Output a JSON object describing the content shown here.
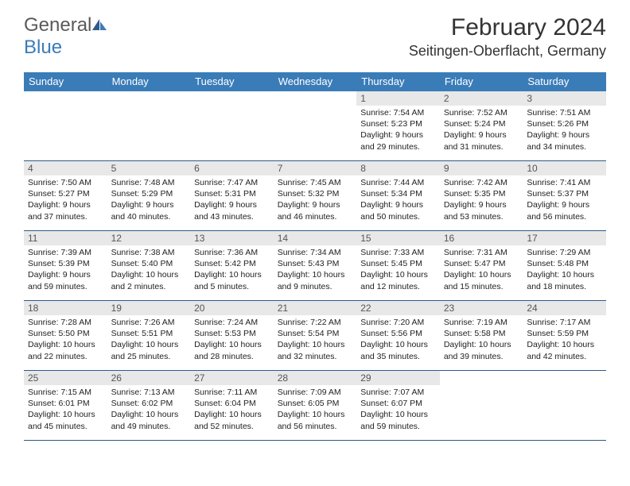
{
  "logo": {
    "part1": "General",
    "part2": "Blue"
  },
  "title": "February 2024",
  "location": "Seitingen-Oberflacht, Germany",
  "dayHeaders": [
    "Sunday",
    "Monday",
    "Tuesday",
    "Wednesday",
    "Thursday",
    "Friday",
    "Saturday"
  ],
  "colors": {
    "headerBg": "#3a7cb8",
    "headerText": "#ffffff",
    "dayNumBg": "#e8e8e8",
    "rowBorder": "#2e5b8a",
    "bodyText": "#222222",
    "logoGray": "#5a5a5a",
    "logoBlue": "#3a7cb8"
  },
  "typography": {
    "titleSize": 30,
    "locationSize": 18,
    "headerSize": 13,
    "dayNumSize": 12,
    "cellSize": 10.5
  },
  "weeks": [
    [
      null,
      null,
      null,
      null,
      {
        "n": "1",
        "sr": "7:54 AM",
        "ss": "5:23 PM",
        "dl": "9 hours and 29 minutes."
      },
      {
        "n": "2",
        "sr": "7:52 AM",
        "ss": "5:24 PM",
        "dl": "9 hours and 31 minutes."
      },
      {
        "n": "3",
        "sr": "7:51 AM",
        "ss": "5:26 PM",
        "dl": "9 hours and 34 minutes."
      }
    ],
    [
      {
        "n": "4",
        "sr": "7:50 AM",
        "ss": "5:27 PM",
        "dl": "9 hours and 37 minutes."
      },
      {
        "n": "5",
        "sr": "7:48 AM",
        "ss": "5:29 PM",
        "dl": "9 hours and 40 minutes."
      },
      {
        "n": "6",
        "sr": "7:47 AM",
        "ss": "5:31 PM",
        "dl": "9 hours and 43 minutes."
      },
      {
        "n": "7",
        "sr": "7:45 AM",
        "ss": "5:32 PM",
        "dl": "9 hours and 46 minutes."
      },
      {
        "n": "8",
        "sr": "7:44 AM",
        "ss": "5:34 PM",
        "dl": "9 hours and 50 minutes."
      },
      {
        "n": "9",
        "sr": "7:42 AM",
        "ss": "5:35 PM",
        "dl": "9 hours and 53 minutes."
      },
      {
        "n": "10",
        "sr": "7:41 AM",
        "ss": "5:37 PM",
        "dl": "9 hours and 56 minutes."
      }
    ],
    [
      {
        "n": "11",
        "sr": "7:39 AM",
        "ss": "5:39 PM",
        "dl": "9 hours and 59 minutes."
      },
      {
        "n": "12",
        "sr": "7:38 AM",
        "ss": "5:40 PM",
        "dl": "10 hours and 2 minutes."
      },
      {
        "n": "13",
        "sr": "7:36 AM",
        "ss": "5:42 PM",
        "dl": "10 hours and 5 minutes."
      },
      {
        "n": "14",
        "sr": "7:34 AM",
        "ss": "5:43 PM",
        "dl": "10 hours and 9 minutes."
      },
      {
        "n": "15",
        "sr": "7:33 AM",
        "ss": "5:45 PM",
        "dl": "10 hours and 12 minutes."
      },
      {
        "n": "16",
        "sr": "7:31 AM",
        "ss": "5:47 PM",
        "dl": "10 hours and 15 minutes."
      },
      {
        "n": "17",
        "sr": "7:29 AM",
        "ss": "5:48 PM",
        "dl": "10 hours and 18 minutes."
      }
    ],
    [
      {
        "n": "18",
        "sr": "7:28 AM",
        "ss": "5:50 PM",
        "dl": "10 hours and 22 minutes."
      },
      {
        "n": "19",
        "sr": "7:26 AM",
        "ss": "5:51 PM",
        "dl": "10 hours and 25 minutes."
      },
      {
        "n": "20",
        "sr": "7:24 AM",
        "ss": "5:53 PM",
        "dl": "10 hours and 28 minutes."
      },
      {
        "n": "21",
        "sr": "7:22 AM",
        "ss": "5:54 PM",
        "dl": "10 hours and 32 minutes."
      },
      {
        "n": "22",
        "sr": "7:20 AM",
        "ss": "5:56 PM",
        "dl": "10 hours and 35 minutes."
      },
      {
        "n": "23",
        "sr": "7:19 AM",
        "ss": "5:58 PM",
        "dl": "10 hours and 39 minutes."
      },
      {
        "n": "24",
        "sr": "7:17 AM",
        "ss": "5:59 PM",
        "dl": "10 hours and 42 minutes."
      }
    ],
    [
      {
        "n": "25",
        "sr": "7:15 AM",
        "ss": "6:01 PM",
        "dl": "10 hours and 45 minutes."
      },
      {
        "n": "26",
        "sr": "7:13 AM",
        "ss": "6:02 PM",
        "dl": "10 hours and 49 minutes."
      },
      {
        "n": "27",
        "sr": "7:11 AM",
        "ss": "6:04 PM",
        "dl": "10 hours and 52 minutes."
      },
      {
        "n": "28",
        "sr": "7:09 AM",
        "ss": "6:05 PM",
        "dl": "10 hours and 56 minutes."
      },
      {
        "n": "29",
        "sr": "7:07 AM",
        "ss": "6:07 PM",
        "dl": "10 hours and 59 minutes."
      },
      null,
      null
    ]
  ],
  "labels": {
    "sunrise": "Sunrise: ",
    "sunset": "Sunset: ",
    "daylight": "Daylight: "
  }
}
